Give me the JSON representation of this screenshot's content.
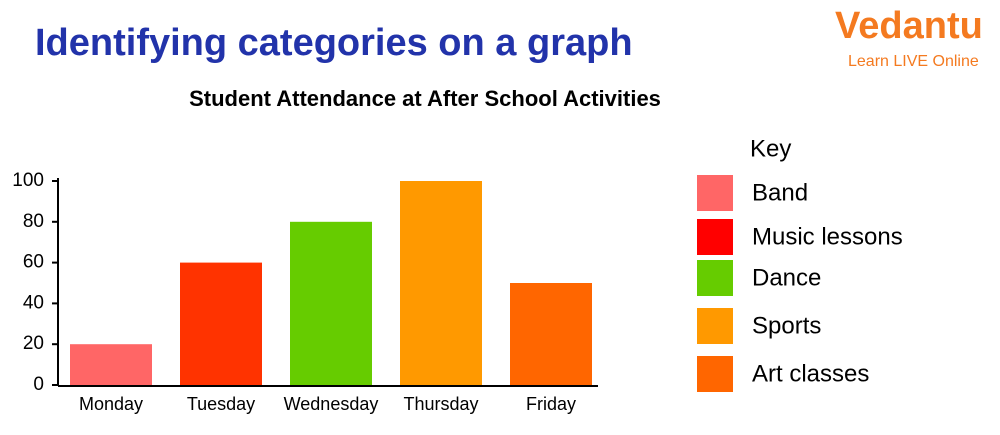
{
  "header": {
    "title": "Identifying categories on a graph"
  },
  "logo": {
    "name": "Vedantu",
    "tagline": "Learn LIVE Online"
  },
  "chart_data": {
    "type": "bar",
    "title": "Student Attendance at After School Activities",
    "categories": [
      "Monday",
      "Tuesday",
      "Wednesday",
      "Thursday",
      "Friday"
    ],
    "values": [
      20,
      60,
      80,
      100,
      50
    ],
    "colors": [
      "#ff6666",
      "#ff3300",
      "#66cc00",
      "#ff9900",
      "#ff6600"
    ],
    "ylim": [
      0,
      100
    ],
    "yticks": [
      0,
      20,
      40,
      60,
      80,
      100
    ],
    "grid": false,
    "legend": {
      "title": "Key",
      "position": "right",
      "items": [
        {
          "name": "Band",
          "color": "#ff6666"
        },
        {
          "name": "Music lessons",
          "color": "#ff0000"
        },
        {
          "name": "Dance",
          "color": "#66cc00"
        },
        {
          "name": "Sports",
          "color": "#ff9900"
        },
        {
          "name": "Art classes",
          "color": "#ff6600"
        }
      ]
    }
  }
}
